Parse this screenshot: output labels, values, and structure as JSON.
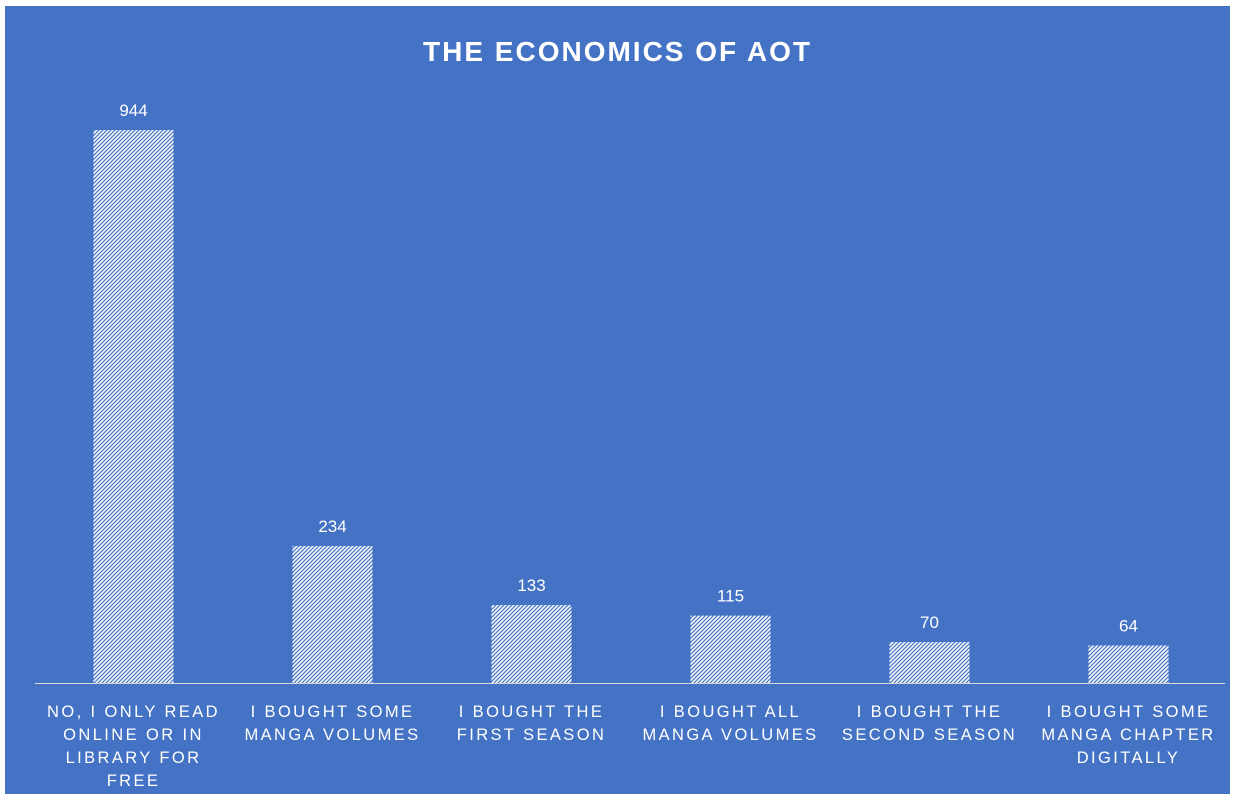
{
  "chart_data": {
    "type": "bar",
    "title": "THE ECONOMICS OF AOT",
    "categories": [
      [
        "NO, I ONLY READ",
        "ONLINE OR IN",
        "LIBRARY FOR",
        "FREE"
      ],
      [
        "I BOUGHT SOME",
        "MANGA VOLUMES"
      ],
      [
        "I BOUGHT THE",
        "FIRST SEASON"
      ],
      [
        "I BOUGHT ALL",
        "MANGA VOLUMES"
      ],
      [
        "I BOUGHT THE",
        "SECOND SEASON"
      ],
      [
        "I BOUGHT SOME",
        "MANGA CHAPTER",
        "DIGITALLY"
      ]
    ],
    "values": [
      944,
      234,
      133,
      115,
      70,
      64
    ],
    "data_labels": [
      "944",
      "234",
      "133",
      "115",
      "70",
      "64"
    ],
    "xlabel": "",
    "ylabel": "",
    "ylim": [
      0,
      944
    ],
    "grid": false,
    "legend": "none",
    "colors": {
      "background": "#4472c4",
      "bar_pattern_fg": "#ffffff",
      "bar_pattern_bg": "#4472c4",
      "text": "#ffffff",
      "axis": "#d9d9d9"
    }
  }
}
